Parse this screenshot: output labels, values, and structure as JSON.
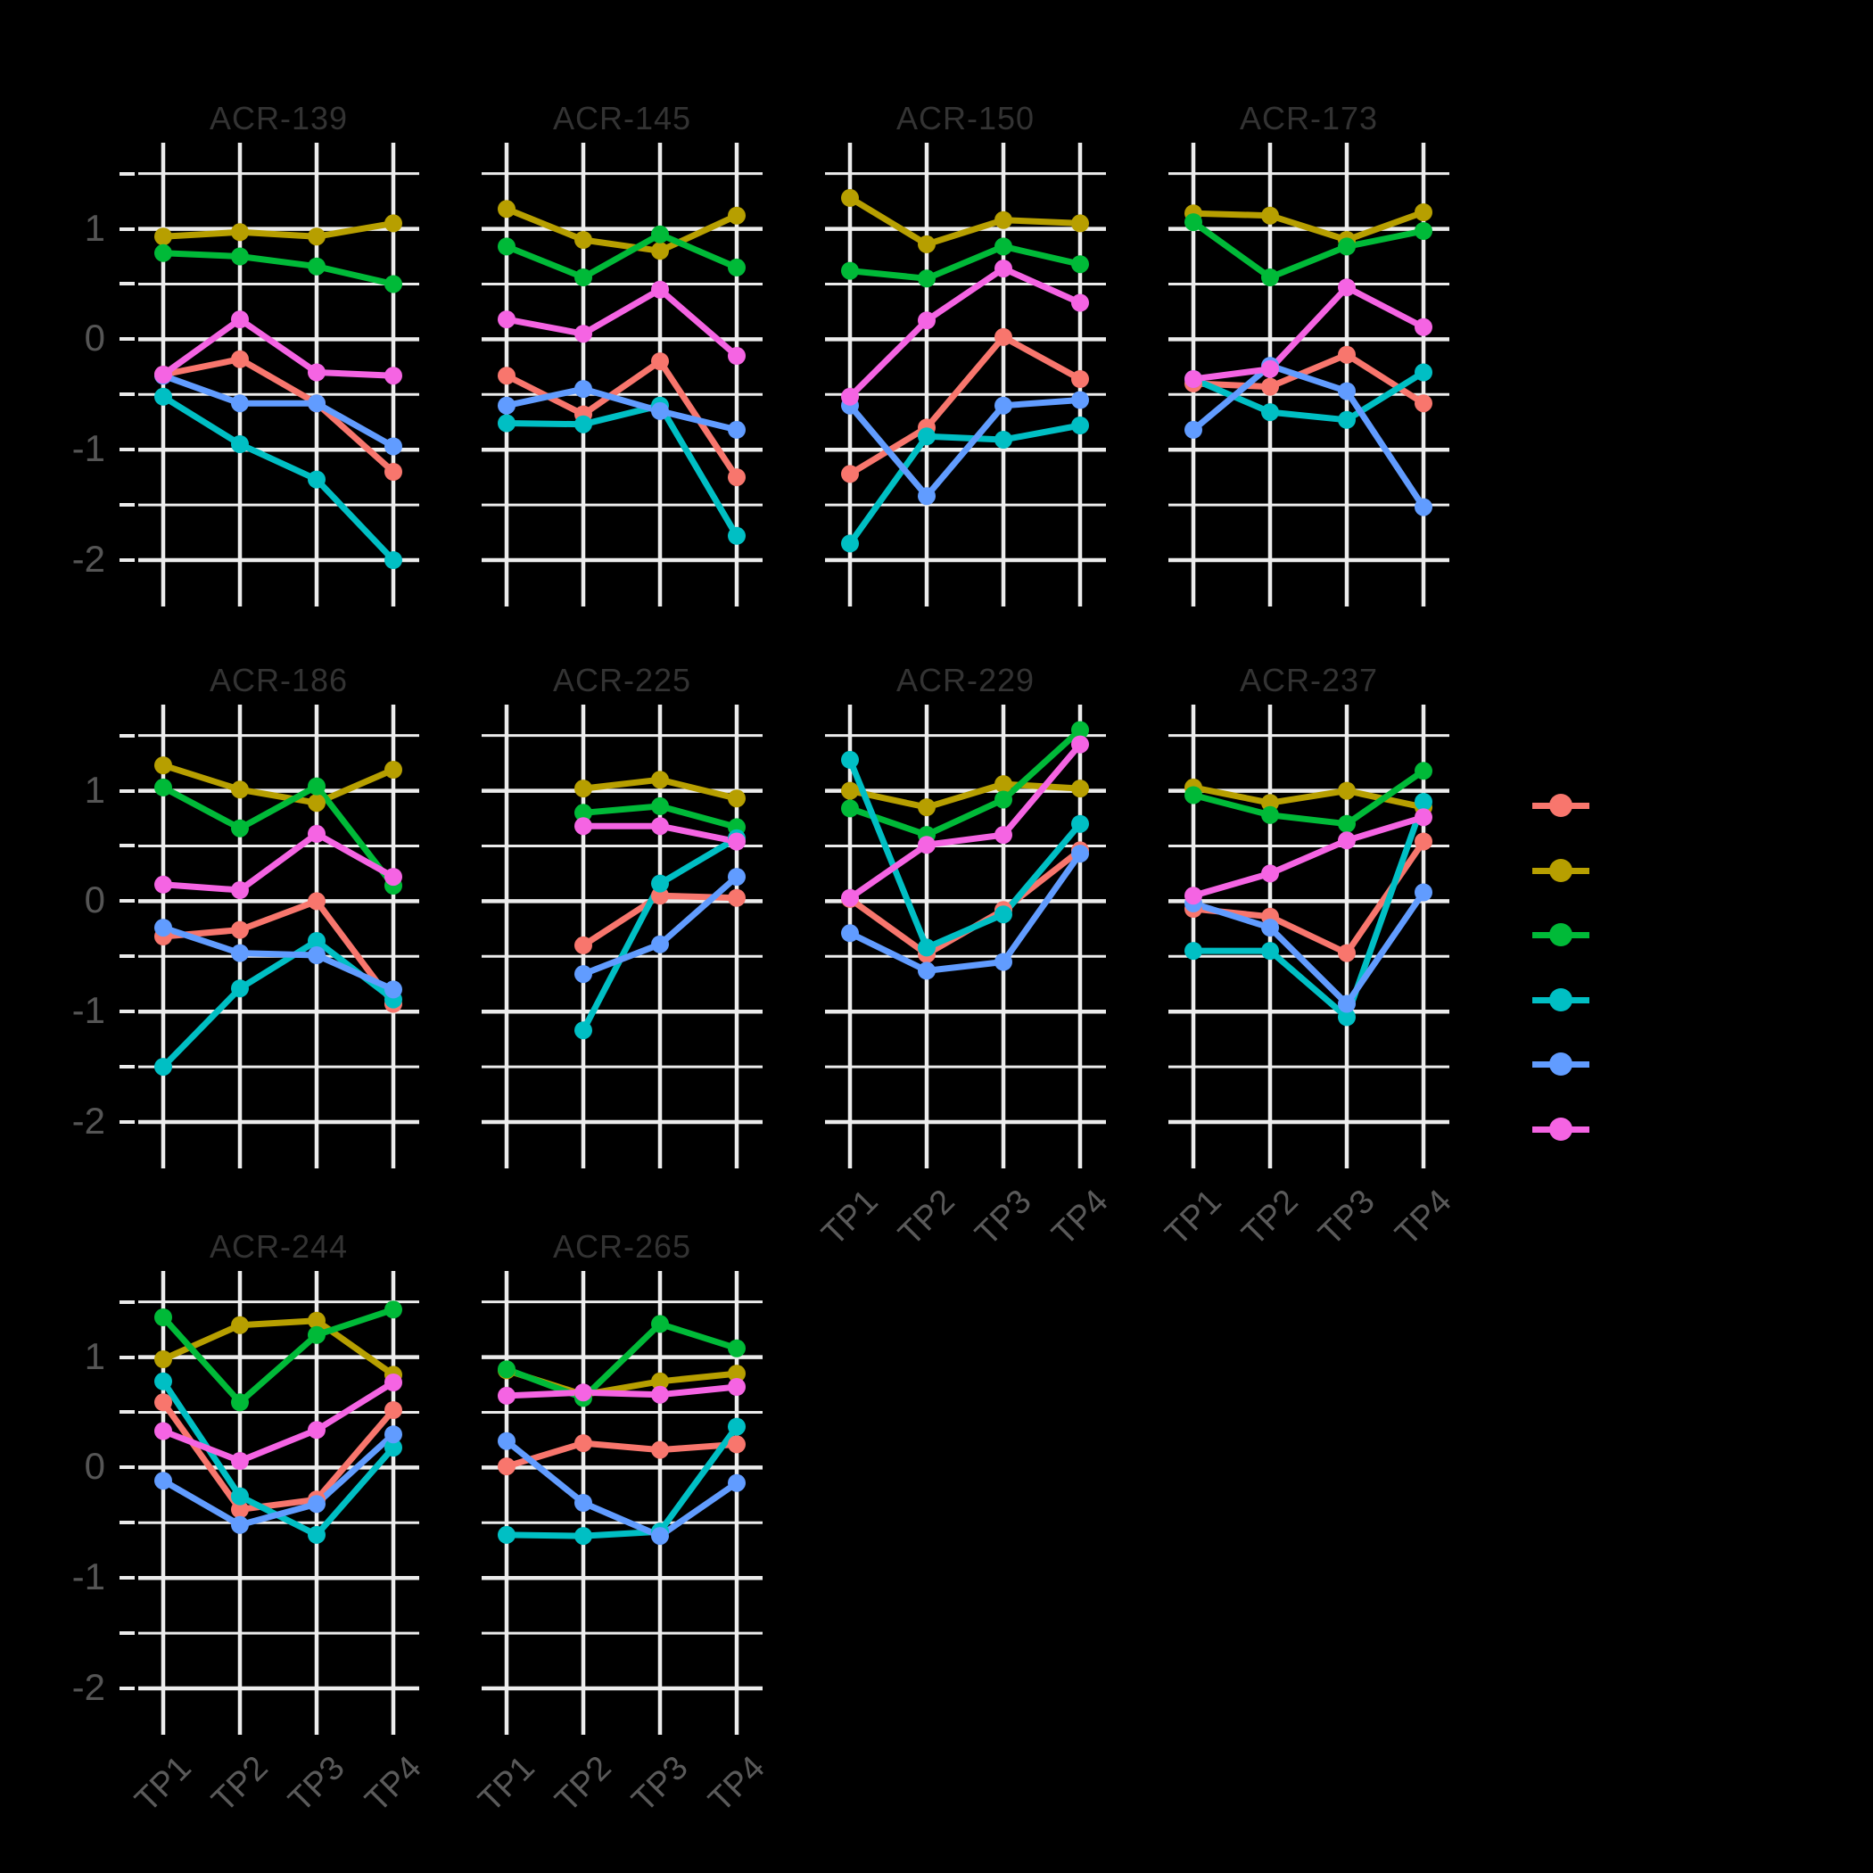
{
  "figure": {
    "background": "#000000",
    "grid_color": "#ECECEC",
    "facet_title_color": "#333333",
    "y_tick_label_color": "#555555",
    "x_tick_label_color": "#5a5a5a"
  },
  "chart_data": {
    "type": "line",
    "categories": [
      "TP1",
      "TP2",
      "TP3",
      "TP4"
    ],
    "y_axis": {
      "tick_labels": [
        "1",
        "0",
        "-1",
        "-2"
      ],
      "tick_values": [
        1,
        0,
        -1,
        -2
      ],
      "minor_tick_values": [
        1.5,
        0.5,
        -0.5,
        -1.5
      ],
      "ylim": [
        -2.42,
        1.78
      ],
      "grid": true
    },
    "palette": {
      "salmon": "#F8766D",
      "gold": "#B79F00",
      "green": "#00BA38",
      "teal": "#00BFC4",
      "blue": "#619CFF",
      "magenta": "#F564E3"
    },
    "series_order": [
      "salmon",
      "gold",
      "green",
      "teal",
      "blue",
      "magenta"
    ],
    "legend": {
      "position": "right",
      "items": [
        {
          "key": "salmon",
          "color": "#F8766D"
        },
        {
          "key": "gold",
          "color": "#B79F00"
        },
        {
          "key": "green",
          "color": "#00BA38"
        },
        {
          "key": "teal",
          "color": "#00BFC4"
        },
        {
          "key": "blue",
          "color": "#619CFF"
        },
        {
          "key": "magenta",
          "color": "#F564E3"
        }
      ]
    },
    "facets": [
      {
        "title": "ACR-139",
        "series": {
          "salmon": [
            -0.32,
            -0.18,
            -0.58,
            -1.2
          ],
          "gold": [
            0.93,
            0.97,
            0.93,
            1.05
          ],
          "green": [
            0.78,
            0.75,
            0.66,
            0.5
          ],
          "teal": [
            -0.52,
            -0.95,
            -1.27,
            -2.0
          ],
          "blue": [
            -0.33,
            -0.58,
            -0.58,
            -0.97
          ],
          "magenta": [
            -0.32,
            0.18,
            -0.3,
            -0.33
          ]
        }
      },
      {
        "title": "ACR-145",
        "series": {
          "salmon": [
            -0.33,
            -0.68,
            -0.2,
            -1.25
          ],
          "gold": [
            1.18,
            0.9,
            0.8,
            1.12
          ],
          "green": [
            0.84,
            0.56,
            0.95,
            0.65
          ],
          "teal": [
            -0.76,
            -0.77,
            -0.6,
            -1.78
          ],
          "blue": [
            -0.6,
            -0.45,
            -0.65,
            -0.82
          ],
          "magenta": [
            0.18,
            0.05,
            0.45,
            -0.15
          ]
        }
      },
      {
        "title": "ACR-150",
        "series": {
          "salmon": [
            -1.22,
            -0.8,
            0.02,
            -0.36
          ],
          "gold": [
            1.28,
            0.86,
            1.08,
            1.05
          ],
          "green": [
            0.62,
            0.55,
            0.84,
            0.68
          ],
          "teal": [
            -1.85,
            -0.88,
            -0.91,
            -0.78
          ],
          "blue": [
            -0.6,
            -1.42,
            -0.6,
            -0.55
          ],
          "magenta": [
            -0.52,
            0.17,
            0.64,
            0.33
          ]
        }
      },
      {
        "title": "ACR-173",
        "series": {
          "salmon": [
            -0.4,
            -0.43,
            -0.14,
            -0.58
          ],
          "gold": [
            1.14,
            1.12,
            0.9,
            1.15
          ],
          "green": [
            1.06,
            0.56,
            0.84,
            0.98
          ],
          "teal": [
            -0.36,
            -0.66,
            -0.73,
            -0.3
          ],
          "blue": [
            -0.82,
            -0.24,
            -0.47,
            -1.52
          ],
          "magenta": [
            -0.36,
            -0.27,
            0.47,
            0.11
          ]
        }
      },
      {
        "title": "ACR-186",
        "series": {
          "salmon": [
            -0.32,
            -0.26,
            0.0,
            -0.93
          ],
          "gold": [
            1.23,
            1.01,
            0.89,
            1.19
          ],
          "green": [
            1.03,
            0.66,
            1.04,
            0.14
          ],
          "teal": [
            -1.5,
            -0.79,
            -0.36,
            -0.89
          ],
          "blue": [
            -0.24,
            -0.47,
            -0.49,
            -0.8
          ],
          "magenta": [
            0.15,
            0.1,
            0.61,
            0.22
          ]
        }
      },
      {
        "title": "ACR-225",
        "series": {
          "salmon": [
            null,
            -0.4,
            0.05,
            0.03
          ],
          "gold": [
            null,
            1.02,
            1.1,
            0.93
          ],
          "green": [
            null,
            0.8,
            0.86,
            0.67
          ],
          "teal": [
            null,
            -1.17,
            0.16,
            0.57
          ],
          "blue": [
            null,
            -0.66,
            -0.39,
            0.22
          ],
          "magenta": [
            null,
            0.68,
            0.68,
            0.54
          ]
        }
      },
      {
        "title": "ACR-229",
        "series": {
          "salmon": [
            0.02,
            -0.48,
            -0.08,
            0.46
          ],
          "gold": [
            1.0,
            0.85,
            1.06,
            1.02
          ],
          "green": [
            0.84,
            0.6,
            0.92,
            1.55
          ],
          "teal": [
            1.28,
            -0.42,
            -0.12,
            0.7
          ],
          "blue": [
            -0.29,
            -0.63,
            -0.55,
            0.43
          ],
          "magenta": [
            0.03,
            0.51,
            0.6,
            1.42
          ]
        }
      },
      {
        "title": "ACR-237",
        "series": {
          "salmon": [
            -0.07,
            -0.14,
            -0.47,
            0.54
          ],
          "gold": [
            1.03,
            0.89,
            1.0,
            0.85
          ],
          "green": [
            0.96,
            0.78,
            0.7,
            1.18
          ],
          "teal": [
            -0.45,
            -0.45,
            -1.05,
            0.9
          ],
          "blue": [
            -0.02,
            -0.24,
            -0.93,
            0.08
          ],
          "magenta": [
            0.05,
            0.25,
            0.55,
            0.76
          ]
        }
      },
      {
        "title": "ACR-244",
        "series": {
          "salmon": [
            0.59,
            -0.38,
            -0.29,
            0.52
          ],
          "gold": [
            0.98,
            1.29,
            1.33,
            0.84
          ],
          "green": [
            1.36,
            0.59,
            1.2,
            1.43
          ],
          "teal": [
            0.78,
            -0.26,
            -0.61,
            0.18
          ],
          "blue": [
            -0.12,
            -0.52,
            -0.33,
            0.3
          ],
          "magenta": [
            0.33,
            0.06,
            0.34,
            0.77
          ]
        }
      },
      {
        "title": "ACR-265",
        "series": {
          "salmon": [
            0.01,
            0.22,
            0.16,
            0.21
          ],
          "gold": [
            0.88,
            0.66,
            0.78,
            0.85
          ],
          "green": [
            0.89,
            0.63,
            1.3,
            1.08
          ],
          "teal": [
            -0.61,
            -0.62,
            -0.58,
            0.37
          ],
          "blue": [
            0.24,
            -0.32,
            -0.62,
            -0.14
          ],
          "magenta": [
            0.65,
            0.68,
            0.66,
            0.73
          ]
        }
      }
    ]
  }
}
